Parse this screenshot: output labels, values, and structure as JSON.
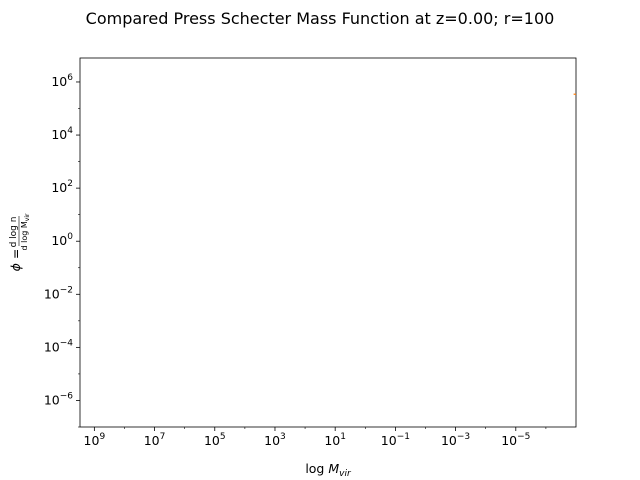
{
  "chart_data": {
    "type": "line",
    "title": "Compared Press Schecter Mass Function at z=0.00; r=100",
    "xlabel": "log M_vir",
    "ylabel": "phi = dlog n / dlog M_vir",
    "x_scale": "log",
    "x_inverted": true,
    "y_scale": "log",
    "xlim": [
      3000000000.0,
      1e-07
    ],
    "ylim": [
      1e-07,
      8000000.0
    ],
    "x_ticks": [
      {
        "base": "10",
        "exp": "9",
        "value": 1000000000.0
      },
      {
        "base": "10",
        "exp": "7",
        "value": 10000000.0
      },
      {
        "base": "10",
        "exp": "5",
        "value": 100000.0
      },
      {
        "base": "10",
        "exp": "3",
        "value": 1000.0
      },
      {
        "base": "10",
        "exp": "1",
        "value": 10.0
      },
      {
        "base": "10",
        "exp": "−1",
        "value": 0.1
      },
      {
        "base": "10",
        "exp": "−3",
        "value": 0.001
      },
      {
        "base": "10",
        "exp": "−5",
        "value": 1e-05
      }
    ],
    "y_ticks": [
      {
        "base": "10",
        "exp": "6",
        "value": 1000000.0
      },
      {
        "base": "10",
        "exp": "4",
        "value": 10000.0
      },
      {
        "base": "10",
        "exp": "2",
        "value": 100.0
      },
      {
        "base": "10",
        "exp": "0",
        "value": 1.0
      },
      {
        "base": "10",
        "exp": "−2",
        "value": 0.01
      },
      {
        "base": "10",
        "exp": "−4",
        "value": 0.0001
      },
      {
        "base": "10",
        "exp": "−6",
        "value": 1e-06
      }
    ],
    "grid": false,
    "series": [
      {
        "color": "#ff7f0e",
        "points": [
          [
            1.2e-07,
            350000.0
          ],
          [
            1e-07,
            340000.0
          ]
        ]
      }
    ]
  }
}
